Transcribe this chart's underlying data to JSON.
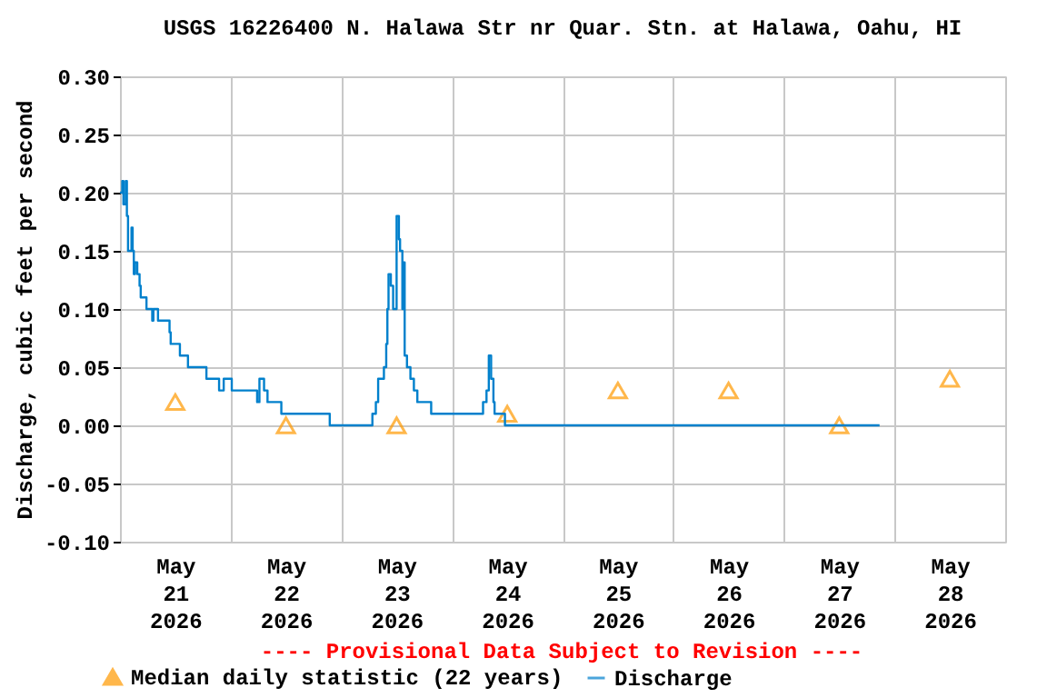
{
  "chart_data": {
    "type": "step",
    "title": "USGS 16226400 N. Halawa Str nr Quar. Stn. at Halawa, Oahu, HI",
    "ylabel": "Discharge, cubic feet per second",
    "annotations": [
      "---- Provisional Data Subject to Revision ----"
    ],
    "xlim": [
      "2026-05-21T00:00",
      "2026-05-29T00:00"
    ],
    "xticks": [
      {
        "value": "2026-05-21T00:00",
        "label": null
      },
      {
        "value": "2026-05-21T12:00",
        "label": "May\n21\n2026"
      },
      {
        "value": "2026-05-22T00:00",
        "label": null
      },
      {
        "value": "2026-05-22T12:00",
        "label": "May\n22\n2026"
      },
      {
        "value": "2026-05-23T00:00",
        "label": null
      },
      {
        "value": "2026-05-23T12:00",
        "label": "May\n23\n2026"
      },
      {
        "value": "2026-05-24T00:00",
        "label": null
      },
      {
        "value": "2026-05-24T12:00",
        "label": "May\n24\n2026"
      },
      {
        "value": "2026-05-25T00:00",
        "label": null
      },
      {
        "value": "2026-05-25T12:00",
        "label": "May\n25\n2026"
      },
      {
        "value": "2026-05-26T00:00",
        "label": null
      },
      {
        "value": "2026-05-26T12:00",
        "label": "May\n26\n2026"
      },
      {
        "value": "2026-05-27T00:00",
        "label": null
      },
      {
        "value": "2026-05-27T12:00",
        "label": "May\n27\n2026"
      },
      {
        "value": "2026-05-28T00:00",
        "label": null
      },
      {
        "value": "2026-05-28T12:00",
        "label": "May\n28\n2026"
      },
      {
        "value": "2026-05-29T00:00",
        "label": null
      }
    ],
    "ylim": [
      -0.1,
      0.3
    ],
    "yticks": [
      {
        "value": -0.1,
        "label": "-0.10"
      },
      {
        "value": -0.05,
        "label": "-0.05"
      },
      {
        "value": 0,
        "label": "0.00"
      },
      {
        "value": 0.05,
        "label": "0.05"
      },
      {
        "value": 0.1,
        "label": "0.10"
      },
      {
        "value": 0.15,
        "label": "0.15"
      },
      {
        "value": 0.2,
        "label": "0.20"
      },
      {
        "value": 0.25,
        "label": "0.25"
      },
      {
        "value": 0.3,
        "label": "0.30"
      }
    ],
    "grid": true,
    "legend": "bottom",
    "series": [
      {
        "name": "Median daily statistic (22 years)",
        "type": "scatter",
        "marker": "triangle",
        "color": "#ff9900",
        "x": [
          "2026-05-21T12:00",
          "2026-05-22T12:00",
          "2026-05-23T12:00",
          "2026-05-24T12:00",
          "2026-05-25T12:00",
          "2026-05-26T12:00",
          "2026-05-27T12:00",
          "2026-05-28T12:00"
        ],
        "values": [
          0.02,
          0.0,
          0.0,
          0.01,
          0.03,
          0.03,
          0.0,
          0.04
        ]
      },
      {
        "name": "Discharge",
        "marker": "none",
        "line_style": "solid",
        "color": "#0080cc",
        "x": [
          "2026-05-21T00:00",
          "2026-05-21T00:30",
          "2026-05-21T00:45",
          "2026-05-21T01:15",
          "2026-05-21T01:30",
          "2026-05-21T01:45",
          "2026-05-21T02:30",
          "2026-05-21T02:45",
          "2026-05-21T03:00",
          "2026-05-21T03:15",
          "2026-05-21T03:45",
          "2026-05-21T04:15",
          "2026-05-21T04:30",
          "2026-05-21T05:45",
          "2026-05-21T07:00",
          "2026-05-21T07:15",
          "2026-05-21T08:15",
          "2026-05-21T10:45",
          "2026-05-21T11:00",
          "2026-05-21T13:00",
          "2026-05-21T14:45",
          "2026-05-21T18:45",
          "2026-05-21T21:30",
          "2026-05-21T22:30",
          "2026-05-22T00:15",
          "2026-05-22T05:45",
          "2026-05-22T06:15",
          "2026-05-22T07:15",
          "2026-05-22T08:00",
          "2026-05-22T11:00",
          "2026-05-22T21:30",
          "2026-05-23T06:45",
          "2026-05-23T07:30",
          "2026-05-23T08:00",
          "2026-05-23T09:15",
          "2026-05-23T09:45",
          "2026-05-23T10:00",
          "2026-05-23T10:15",
          "2026-05-23T10:45",
          "2026-05-23T11:15",
          "2026-05-23T12:00",
          "2026-05-23T12:30",
          "2026-05-23T12:45",
          "2026-05-23T13:15",
          "2026-05-23T13:30",
          "2026-05-23T13:45",
          "2026-05-23T14:15",
          "2026-05-23T15:00",
          "2026-05-23T15:45",
          "2026-05-23T16:30",
          "2026-05-23T19:30",
          "2026-05-24T06:45",
          "2026-05-24T07:30",
          "2026-05-24T08:00",
          "2026-05-24T08:30",
          "2026-05-24T09:00",
          "2026-05-24T09:15",
          "2026-05-24T11:30",
          "2026-05-27T20:45"
        ],
        "values": [
          0.2,
          0.21,
          0.19,
          0.21,
          0.18,
          0.15,
          0.17,
          0.15,
          0.13,
          0.14,
          0.13,
          0.12,
          0.11,
          0.1,
          0.09,
          0.1,
          0.09,
          0.08,
          0.07,
          0.06,
          0.05,
          0.04,
          0.03,
          0.04,
          0.03,
          0.02,
          0.04,
          0.03,
          0.02,
          0.01,
          0.0,
          0.01,
          0.02,
          0.04,
          0.05,
          0.07,
          0.1,
          0.13,
          0.12,
          0.1,
          0.18,
          0.16,
          0.15,
          0.1,
          0.14,
          0.06,
          0.05,
          0.04,
          0.03,
          0.02,
          0.01,
          0.02,
          0.03,
          0.06,
          0.04,
          0.02,
          0.01,
          0.0,
          0.0
        ]
      }
    ]
  }
}
